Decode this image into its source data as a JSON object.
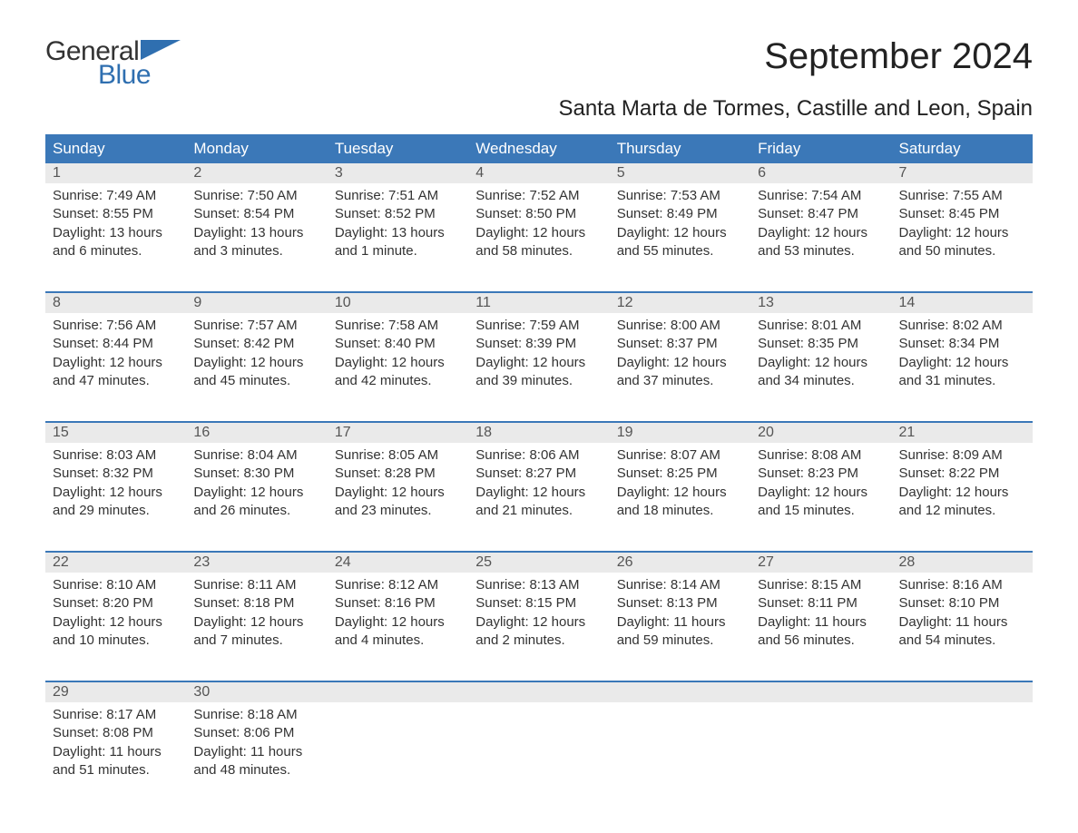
{
  "logo": {
    "word1": "General",
    "word2": "Blue"
  },
  "title": "September 2024",
  "location": "Santa Marta de Tormes, Castille and Leon, Spain",
  "colors": {
    "header_bg": "#3b78b8",
    "header_text": "#ffffff",
    "daynum_bg": "#eaeaea",
    "daynum_text": "#555555",
    "body_text": "#333333",
    "rule": "#3b78b8",
    "logo_blue": "#2f6fb0",
    "logo_dark": "#333333",
    "page_bg": "#ffffff"
  },
  "typography": {
    "title_fontsize": 40,
    "location_fontsize": 24,
    "header_fontsize": 17,
    "daynum_fontsize": 16,
    "detail_fontsize": 15
  },
  "day_headers": [
    "Sunday",
    "Monday",
    "Tuesday",
    "Wednesday",
    "Thursday",
    "Friday",
    "Saturday"
  ],
  "weeks": [
    [
      {
        "num": "1",
        "sunrise": "Sunrise: 7:49 AM",
        "sunset": "Sunset: 8:55 PM",
        "d1": "Daylight: 13 hours",
        "d2": "and 6 minutes."
      },
      {
        "num": "2",
        "sunrise": "Sunrise: 7:50 AM",
        "sunset": "Sunset: 8:54 PM",
        "d1": "Daylight: 13 hours",
        "d2": "and 3 minutes."
      },
      {
        "num": "3",
        "sunrise": "Sunrise: 7:51 AM",
        "sunset": "Sunset: 8:52 PM",
        "d1": "Daylight: 13 hours",
        "d2": "and 1 minute."
      },
      {
        "num": "4",
        "sunrise": "Sunrise: 7:52 AM",
        "sunset": "Sunset: 8:50 PM",
        "d1": "Daylight: 12 hours",
        "d2": "and 58 minutes."
      },
      {
        "num": "5",
        "sunrise": "Sunrise: 7:53 AM",
        "sunset": "Sunset: 8:49 PM",
        "d1": "Daylight: 12 hours",
        "d2": "and 55 minutes."
      },
      {
        "num": "6",
        "sunrise": "Sunrise: 7:54 AM",
        "sunset": "Sunset: 8:47 PM",
        "d1": "Daylight: 12 hours",
        "d2": "and 53 minutes."
      },
      {
        "num": "7",
        "sunrise": "Sunrise: 7:55 AM",
        "sunset": "Sunset: 8:45 PM",
        "d1": "Daylight: 12 hours",
        "d2": "and 50 minutes."
      }
    ],
    [
      {
        "num": "8",
        "sunrise": "Sunrise: 7:56 AM",
        "sunset": "Sunset: 8:44 PM",
        "d1": "Daylight: 12 hours",
        "d2": "and 47 minutes."
      },
      {
        "num": "9",
        "sunrise": "Sunrise: 7:57 AM",
        "sunset": "Sunset: 8:42 PM",
        "d1": "Daylight: 12 hours",
        "d2": "and 45 minutes."
      },
      {
        "num": "10",
        "sunrise": "Sunrise: 7:58 AM",
        "sunset": "Sunset: 8:40 PM",
        "d1": "Daylight: 12 hours",
        "d2": "and 42 minutes."
      },
      {
        "num": "11",
        "sunrise": "Sunrise: 7:59 AM",
        "sunset": "Sunset: 8:39 PM",
        "d1": "Daylight: 12 hours",
        "d2": "and 39 minutes."
      },
      {
        "num": "12",
        "sunrise": "Sunrise: 8:00 AM",
        "sunset": "Sunset: 8:37 PM",
        "d1": "Daylight: 12 hours",
        "d2": "and 37 minutes."
      },
      {
        "num": "13",
        "sunrise": "Sunrise: 8:01 AM",
        "sunset": "Sunset: 8:35 PM",
        "d1": "Daylight: 12 hours",
        "d2": "and 34 minutes."
      },
      {
        "num": "14",
        "sunrise": "Sunrise: 8:02 AM",
        "sunset": "Sunset: 8:34 PM",
        "d1": "Daylight: 12 hours",
        "d2": "and 31 minutes."
      }
    ],
    [
      {
        "num": "15",
        "sunrise": "Sunrise: 8:03 AM",
        "sunset": "Sunset: 8:32 PM",
        "d1": "Daylight: 12 hours",
        "d2": "and 29 minutes."
      },
      {
        "num": "16",
        "sunrise": "Sunrise: 8:04 AM",
        "sunset": "Sunset: 8:30 PM",
        "d1": "Daylight: 12 hours",
        "d2": "and 26 minutes."
      },
      {
        "num": "17",
        "sunrise": "Sunrise: 8:05 AM",
        "sunset": "Sunset: 8:28 PM",
        "d1": "Daylight: 12 hours",
        "d2": "and 23 minutes."
      },
      {
        "num": "18",
        "sunrise": "Sunrise: 8:06 AM",
        "sunset": "Sunset: 8:27 PM",
        "d1": "Daylight: 12 hours",
        "d2": "and 21 minutes."
      },
      {
        "num": "19",
        "sunrise": "Sunrise: 8:07 AM",
        "sunset": "Sunset: 8:25 PM",
        "d1": "Daylight: 12 hours",
        "d2": "and 18 minutes."
      },
      {
        "num": "20",
        "sunrise": "Sunrise: 8:08 AM",
        "sunset": "Sunset: 8:23 PM",
        "d1": "Daylight: 12 hours",
        "d2": "and 15 minutes."
      },
      {
        "num": "21",
        "sunrise": "Sunrise: 8:09 AM",
        "sunset": "Sunset: 8:22 PM",
        "d1": "Daylight: 12 hours",
        "d2": "and 12 minutes."
      }
    ],
    [
      {
        "num": "22",
        "sunrise": "Sunrise: 8:10 AM",
        "sunset": "Sunset: 8:20 PM",
        "d1": "Daylight: 12 hours",
        "d2": "and 10 minutes."
      },
      {
        "num": "23",
        "sunrise": "Sunrise: 8:11 AM",
        "sunset": "Sunset: 8:18 PM",
        "d1": "Daylight: 12 hours",
        "d2": "and 7 minutes."
      },
      {
        "num": "24",
        "sunrise": "Sunrise: 8:12 AM",
        "sunset": "Sunset: 8:16 PM",
        "d1": "Daylight: 12 hours",
        "d2": "and 4 minutes."
      },
      {
        "num": "25",
        "sunrise": "Sunrise: 8:13 AM",
        "sunset": "Sunset: 8:15 PM",
        "d1": "Daylight: 12 hours",
        "d2": "and 2 minutes."
      },
      {
        "num": "26",
        "sunrise": "Sunrise: 8:14 AM",
        "sunset": "Sunset: 8:13 PM",
        "d1": "Daylight: 11 hours",
        "d2": "and 59 minutes."
      },
      {
        "num": "27",
        "sunrise": "Sunrise: 8:15 AM",
        "sunset": "Sunset: 8:11 PM",
        "d1": "Daylight: 11 hours",
        "d2": "and 56 minutes."
      },
      {
        "num": "28",
        "sunrise": "Sunrise: 8:16 AM",
        "sunset": "Sunset: 8:10 PM",
        "d1": "Daylight: 11 hours",
        "d2": "and 54 minutes."
      }
    ],
    [
      {
        "num": "29",
        "sunrise": "Sunrise: 8:17 AM",
        "sunset": "Sunset: 8:08 PM",
        "d1": "Daylight: 11 hours",
        "d2": "and 51 minutes."
      },
      {
        "num": "30",
        "sunrise": "Sunrise: 8:18 AM",
        "sunset": "Sunset: 8:06 PM",
        "d1": "Daylight: 11 hours",
        "d2": "and 48 minutes."
      },
      null,
      null,
      null,
      null,
      null
    ]
  ]
}
